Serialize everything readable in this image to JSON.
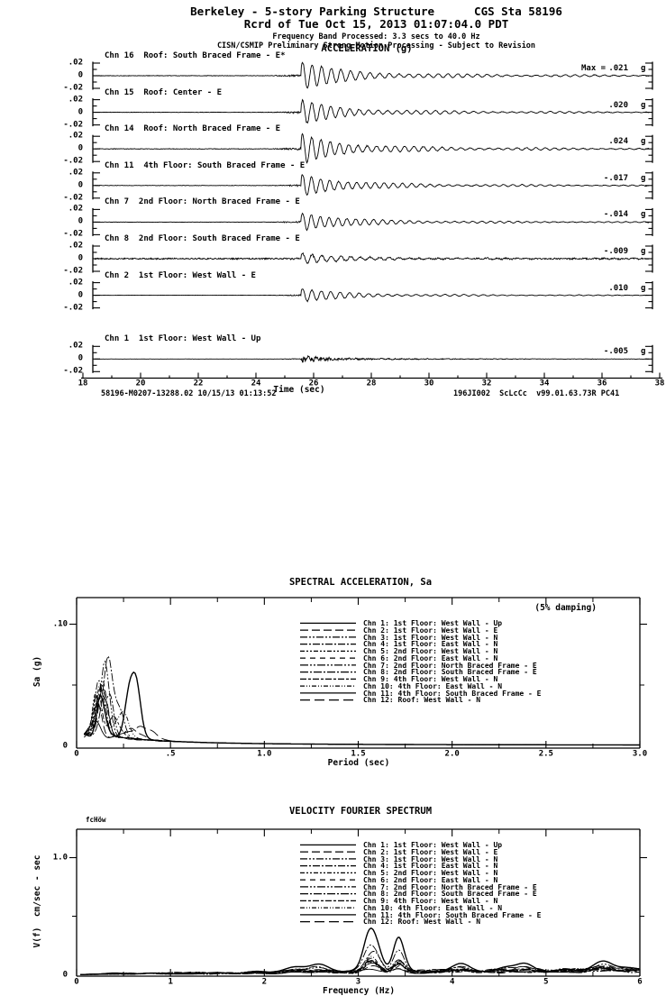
{
  "header": {
    "title": "Berkeley - 5-story Parking Structure",
    "station": "CGS Sta 58196",
    "record_time": "Rcrd of Tue Oct 15, 2013 01:07:04.0 PDT",
    "band": "Frequency Band Processed: 3.3 secs to 40.0 Hz",
    "disclaimer": "CISN/CSMIP Preliminary Strong Motion Processing - Subject to Revision"
  },
  "chart_data": [
    {
      "type": "line",
      "subtype": "seismogram",
      "title": "ACCELERATION (g)",
      "xlabel": "Time (sec)",
      "xlim": [
        18,
        38
      ],
      "x_ticks": [
        18,
        20,
        22,
        24,
        26,
        28,
        30,
        32,
        34,
        36,
        38
      ],
      "y_tick_labels": [
        ".02",
        "0",
        "-.02"
      ],
      "y_range_g": [
        -0.02,
        0.02
      ],
      "max_prefix": "Max =",
      "unit": "g",
      "event_onset_sec": 25.5,
      "dominant_freq_hz": 3.0,
      "channels": [
        {
          "label": "Chn 16  Roof: South Braced Frame - E*",
          "max": ".021",
          "peak_g": 0.021
        },
        {
          "label": "Chn 15  Roof: Center - E",
          "max": ".020",
          "peak_g": 0.02
        },
        {
          "label": "Chn 14  Roof: North Braced Frame - E",
          "max": ".024",
          "peak_g": 0.024
        },
        {
          "label": "Chn 11  4th Floor: South Braced Frame - E",
          "max": "-.017",
          "peak_g": 0.017
        },
        {
          "label": "Chn 7  2nd Floor: North Braced Frame - E",
          "max": "-.014",
          "peak_g": 0.014
        },
        {
          "label": "Chn 8  2nd Floor: South Braced Frame - E",
          "max": "-.009",
          "peak_g": 0.009,
          "prenoise": 0.14
        },
        {
          "label": "Chn 2  1st Floor: West Wall - E",
          "max": ".010",
          "peak_g": 0.01
        },
        {
          "label": "Chn 1  1st Floor: West Wall - Up",
          "max": "-.005",
          "peak_g": 0.005,
          "vertical": true,
          "gap_before": true
        }
      ],
      "footer_left": "58196-M0207-13288.02 10/15/13 01:13:52",
      "footer_right": "196JI002  ScLcCc  v99.01.63.73R PC41"
    },
    {
      "type": "line",
      "title": "SPECTRAL ACCELERATION, Sa",
      "annotation": "(5% damping)",
      "xlabel": "Period (sec)",
      "ylabel": "Sa (g)",
      "xlim": [
        0,
        3
      ],
      "x_ticks": [
        {
          "v": 0,
          "label": "0"
        },
        {
          "v": 0.5,
          "label": ".5"
        },
        {
          "v": 1,
          "label": "1.0"
        },
        {
          "v": 1.5,
          "label": "1.5"
        },
        {
          "v": 2,
          "label": "2.0"
        },
        {
          "v": 2.5,
          "label": "2.5"
        },
        {
          "v": 3,
          "label": "3.0"
        }
      ],
      "x_minor_step": 0.25,
      "y_ticks": [
        {
          "v": 0.1,
          "label": ".10"
        },
        {
          "v": 0,
          "label": "0"
        }
      ],
      "y_minor": [
        0.05
      ],
      "legend_position": "upper-center",
      "grid": false,
      "series": [
        {
          "label": "Chn 1: 1st Floor: West Wall - Up",
          "dash": "",
          "width": 0.9,
          "peaks": [
            [
              0.1,
              0.012,
              0.03
            ]
          ]
        },
        {
          "label": "Chn 2: 1st Floor: West Wall - E",
          "dash": "9,4",
          "peaks": [
            [
              0.11,
              0.028,
              0.03
            ],
            [
              0.3,
              0.008,
              0.06
            ]
          ]
        },
        {
          "label": "Chn 3: 1st Floor: West Wall - N",
          "dash": "8,2,2,2,2,2",
          "peaks": [
            [
              0.13,
              0.038,
              0.035
            ]
          ]
        },
        {
          "label": "Chn 4: 1st Floor: East Wall - N",
          "dash": "8,2,2,2",
          "peaks": [
            [
              0.12,
              0.05,
              0.03
            ],
            [
              0.18,
              0.028,
              0.03
            ]
          ]
        },
        {
          "label": "Chn 5: 2nd Floor: West Wall - N",
          "dash": "5,2,2,2,2,2",
          "peaks": [
            [
              0.1,
              0.033,
              0.025
            ],
            [
              0.15,
              0.024,
              0.03
            ]
          ]
        },
        {
          "label": "Chn 6: 2nd Floor: East Wall - N",
          "dash": "6,5",
          "peaks": [
            [
              0.14,
              0.044,
              0.035
            ]
          ]
        },
        {
          "label": "Chn 7: 2nd Floor: North Braced Frame - E",
          "dash": "9,2,2,2,2,2",
          "peaks": [
            [
              0.155,
              0.068,
              0.03
            ],
            [
              0.1,
              0.03,
              0.02
            ]
          ]
        },
        {
          "label": "Chn 8: 2nd Floor: South Braced Frame - E",
          "dash": "9,2,2,2",
          "peaks": [
            [
              0.16,
              0.055,
              0.035
            ],
            [
              0.22,
              0.028,
              0.04
            ]
          ]
        },
        {
          "label": "Chn 9: 4th Floor: West Wall - N",
          "dash": "7,2,3,2",
          "peaks": [
            [
              0.12,
              0.028,
              0.03
            ],
            [
              0.2,
              0.017,
              0.04
            ]
          ]
        },
        {
          "label": "Chn 10: 4th Floor: East Wall - N",
          "dash": "5,2,1,2,1,2",
          "peaks": [
            [
              0.13,
              0.04,
              0.03
            ],
            [
              0.24,
              0.02,
              0.05
            ]
          ]
        },
        {
          "label": "Chn 11: 4th Floor: South Braced Frame - E",
          "dash": "",
          "width": 1.4,
          "peaks": [
            [
              0.3,
              0.058,
              0.045
            ],
            [
              0.13,
              0.033,
              0.03
            ]
          ]
        },
        {
          "label": "Chn 12: Roof: West Wall - N",
          "dash": "11,5",
          "peaks": [
            [
              0.145,
              0.046,
              0.03
            ],
            [
              0.35,
              0.011,
              0.08
            ]
          ]
        }
      ]
    },
    {
      "type": "line",
      "title": "VELOCITY FOURIER SPECTRUM",
      "annotation": "fcHöw",
      "xlabel": "Frequency (Hz)",
      "ylabel": "V(f)  cm/sec - sec",
      "xlim": [
        0,
        6
      ],
      "x_ticks": [
        {
          "v": 0,
          "label": "0"
        },
        {
          "v": 1,
          "label": "1"
        },
        {
          "v": 2,
          "label": "2"
        },
        {
          "v": 3,
          "label": "3"
        },
        {
          "v": 4,
          "label": "4"
        },
        {
          "v": 5,
          "label": "5"
        },
        {
          "v": 6,
          "label": "6"
        }
      ],
      "x_minor_step": 0.5,
      "y_ticks": [
        {
          "v": 1.0,
          "label": "1.0"
        },
        {
          "v": 0,
          "label": "0"
        }
      ],
      "y_minor": [
        0.5
      ],
      "peak_frequency_hz": 3.15,
      "grid": false,
      "series": [
        {
          "label": "Chn 1: 1st Floor: West Wall - Up",
          "dash": "",
          "width": 0.9,
          "amp": 0.035
        },
        {
          "label": "Chn 2: 1st Floor: West Wall - E",
          "dash": "9,4",
          "amp": 0.07
        },
        {
          "label": "Chn 3: 1st Floor: West Wall - N",
          "dash": "8,2,2,2,2,2",
          "amp": 0.09
        },
        {
          "label": "Chn 4: 1st Floor: East Wall - N",
          "dash": "8,2,2,2",
          "amp": 0.12
        },
        {
          "label": "Chn 5: 2nd Floor: West Wall - N",
          "dash": "5,2,2,2,2,2",
          "amp": 0.08
        },
        {
          "label": "Chn 6: 2nd Floor: East Wall - N",
          "dash": "6,5",
          "amp": 0.1
        },
        {
          "label": "Chn 7: 2nd Floor: North Braced Frame - E",
          "dash": "9,2,2,2,2,2",
          "amp": 0.27
        },
        {
          "label": "Chn 8: 2nd Floor: South Braced Frame - E",
          "dash": "9,2,2,2",
          "amp": 0.21
        },
        {
          "label": "Chn 9: 4th Floor: West Wall - N",
          "dash": "7,2,3,2",
          "amp": 0.1
        },
        {
          "label": "Chn 10: 4th Floor: East Wall - N",
          "dash": "5,2,1,2,1,2",
          "amp": 0.13
        },
        {
          "label": "Chn 11: 4th Floor: South Braced Frame - E",
          "dash": "",
          "width": 1.4,
          "amp": 0.44
        },
        {
          "label": "Chn 12: Roof: West Wall - N",
          "dash": "11,5",
          "amp": 0.12
        }
      ]
    }
  ]
}
